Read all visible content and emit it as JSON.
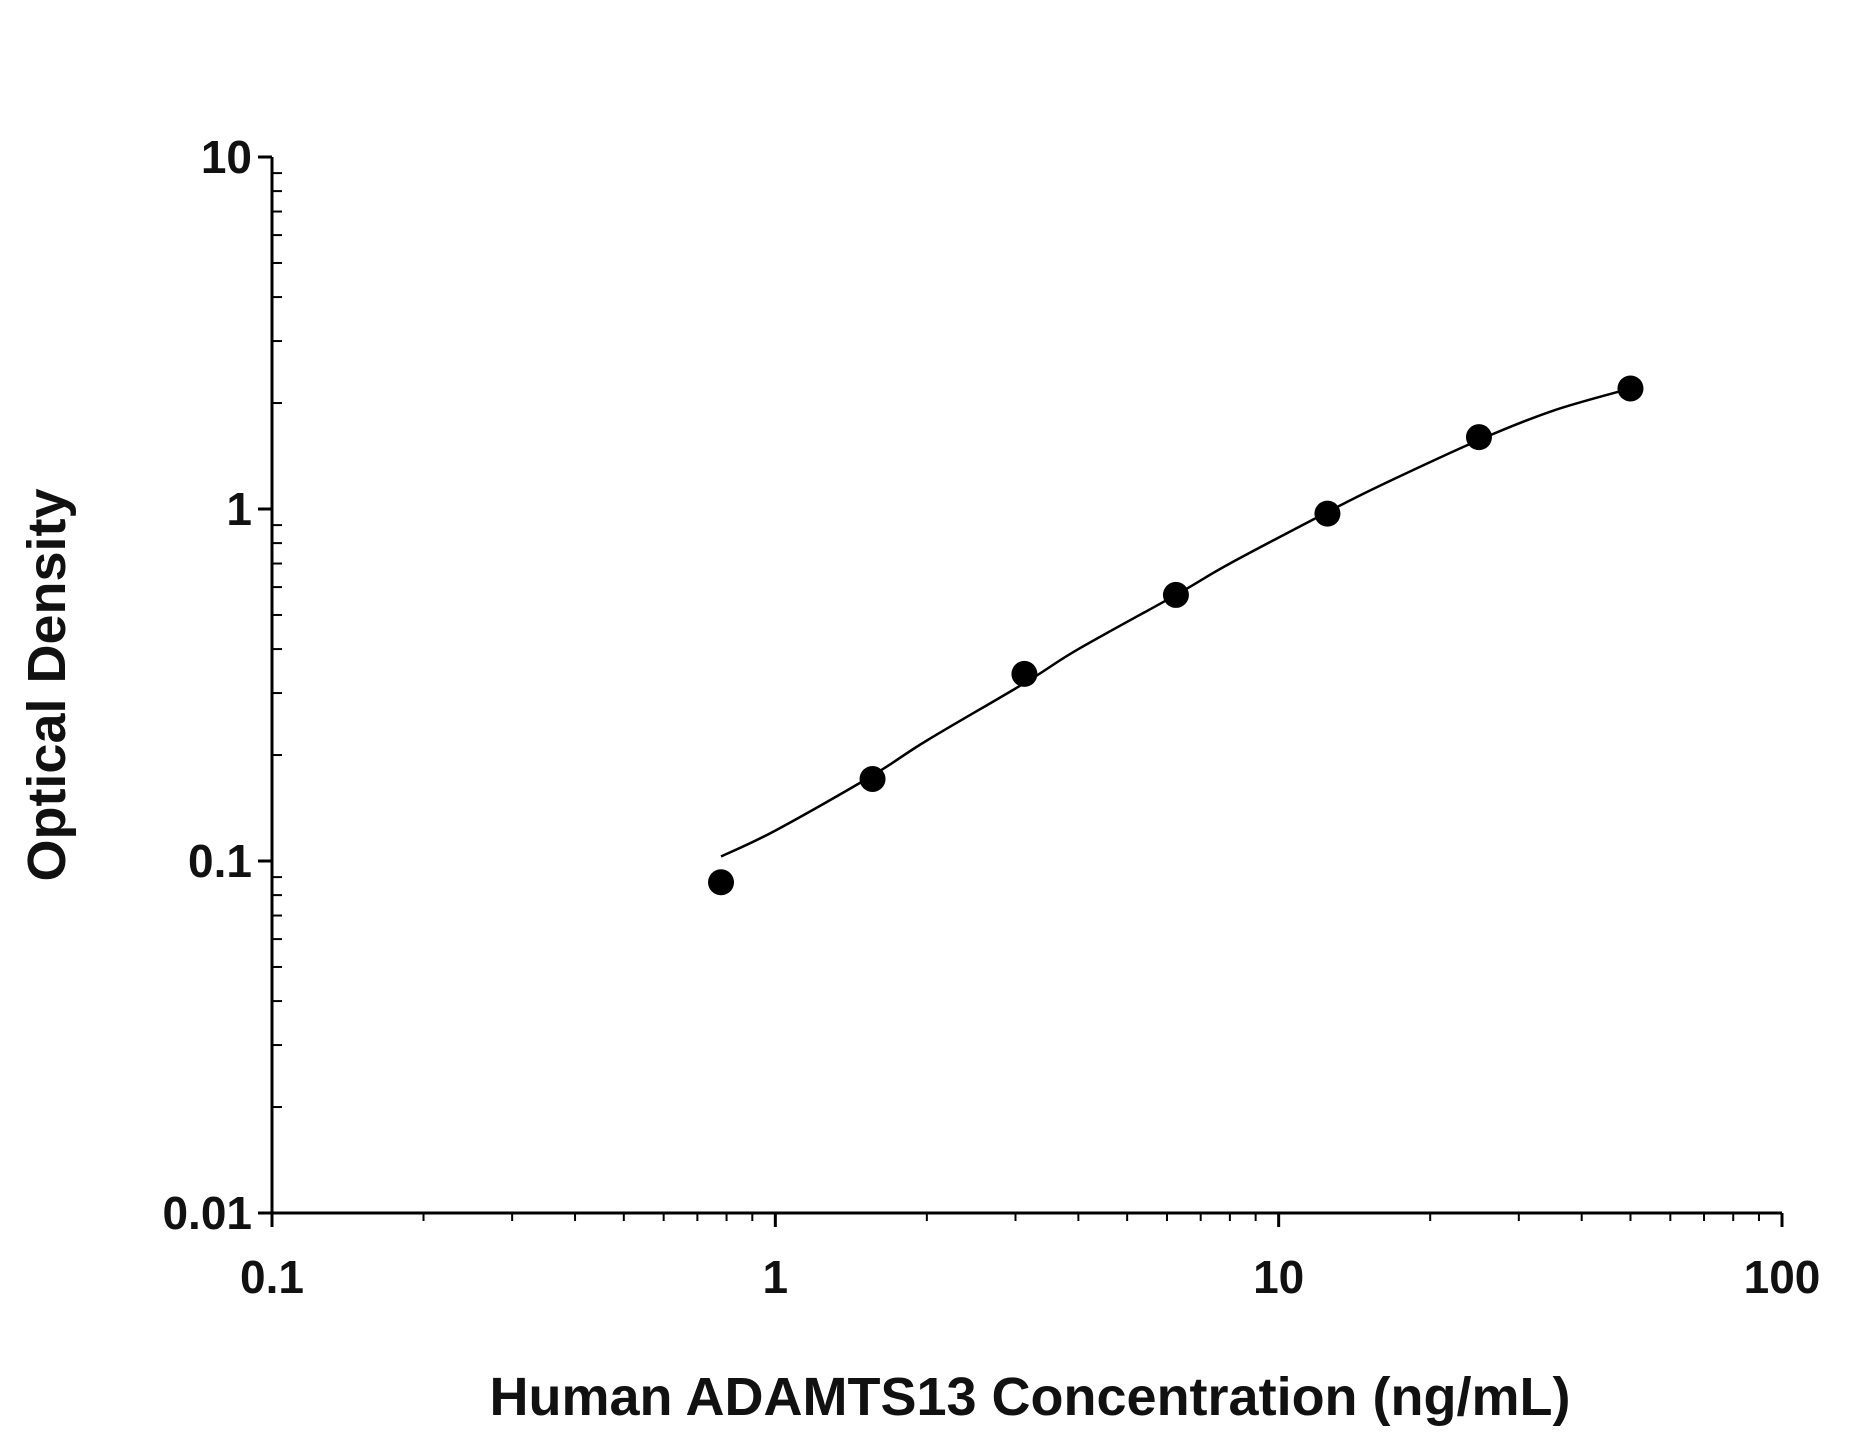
{
  "chart_data": {
    "type": "scatter",
    "title": "",
    "xlabel": "Human ADAMTS13 Concentration (ng/mL)",
    "ylabel": "Optical Density",
    "x_scale": "log",
    "y_scale": "log",
    "xlim": [
      0.1,
      100
    ],
    "ylim": [
      0.01,
      10
    ],
    "x_ticks": [
      0.1,
      1,
      10,
      100
    ],
    "x_tick_labels": [
      "0.1",
      "1",
      "10",
      "100"
    ],
    "y_ticks": [
      0.01,
      0.1,
      1,
      10
    ],
    "y_tick_labels": [
      "0.01",
      "0.1",
      "1",
      "10"
    ],
    "grid": false,
    "legend": "none",
    "colors": {
      "points": "#000000",
      "curve": "#000000",
      "axes": "#000000"
    },
    "series": [
      {
        "x": [
          0.78,
          1.56,
          3.125,
          6.25,
          12.5,
          25,
          50
        ],
        "y": [
          0.087,
          0.171,
          0.34,
          0.57,
          0.97,
          1.6,
          2.2
        ]
      }
    ],
    "fit_curve": {
      "type": "4PL",
      "x": [
        0.78,
        1.0,
        1.56,
        2.0,
        3.125,
        4.0,
        6.25,
        8.0,
        12.5,
        16.0,
        25.0,
        35.0,
        50.0
      ],
      "y": [
        0.103,
        0.122,
        0.175,
        0.22,
        0.32,
        0.4,
        0.57,
        0.7,
        0.98,
        1.17,
        1.57,
        1.9,
        2.2
      ]
    }
  }
}
